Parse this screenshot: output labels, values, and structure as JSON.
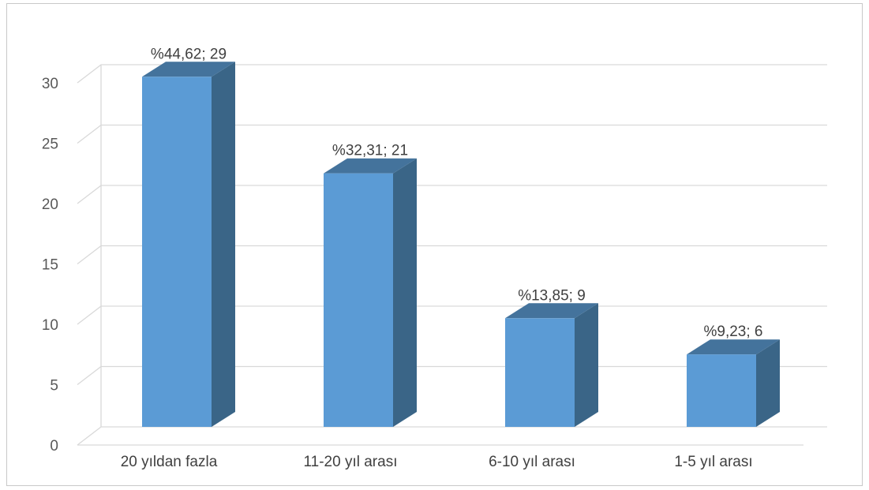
{
  "chart_data": {
    "type": "bar",
    "style": "3d-column",
    "categories": [
      "20 yıldan fazla",
      "11-20 yıl arası",
      "6-10 yıl arası",
      "1-5 yıl arası"
    ],
    "values": [
      29,
      21,
      9,
      6
    ],
    "data_labels": [
      "%44,62; 29",
      "%32,31; 21",
      "%13,85; 9",
      "%9,23; 6"
    ],
    "y_ticks": [
      "0",
      "5",
      "10",
      "15",
      "20",
      "25",
      "30"
    ],
    "ylim": [
      0,
      30
    ],
    "grid": true,
    "legend": "none",
    "colors": {
      "bar_front": "#5b9bd5",
      "bar_side": "#3a6587",
      "bar_top": "#44739c",
      "grid": "#d9d9d9"
    }
  }
}
